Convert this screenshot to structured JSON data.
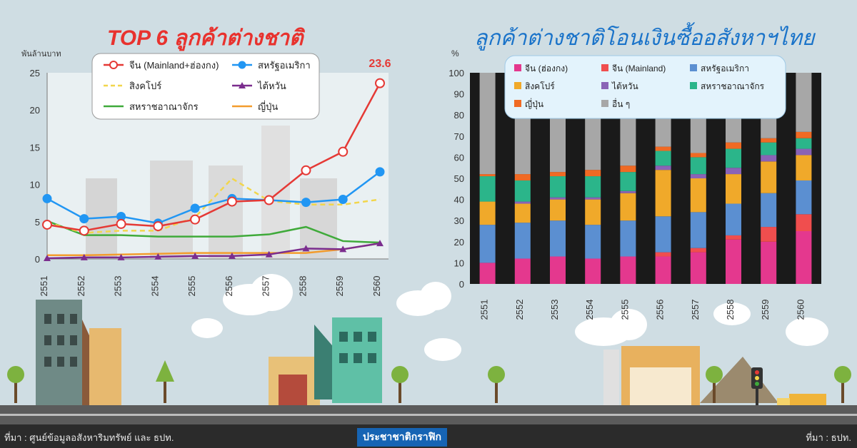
{
  "titles": {
    "left": "TOP 6 ลูกค้าต่างชาติ",
    "right": "ลูกค้าต่างชาติโอนเงินซื้ออสังหาฯไทย"
  },
  "footer": {
    "source_left": "ที่มา : ศูนย์ข้อมูลอสังหาริมทรัพย์ และ ธปท.",
    "brand": "ประชาชาติกราฟิก",
    "source_right": "ที่มา : ธปท."
  },
  "colors": {
    "china": "#e53935",
    "usa": "#2196f3",
    "singapore": "#f2d64b",
    "taiwan": "#7b2d8e",
    "uk": "#3faa3a",
    "japan": "#f39c2d",
    "s_hk": "#e4388e",
    "s_cn": "#f04e4e",
    "s_us": "#5b8fd1",
    "s_sg": "#f0a92a",
    "s_tw": "#8a63b6",
    "s_uk": "#2bb58a",
    "s_jp": "#f06a24",
    "s_other": "#a7a7a7"
  },
  "chart_data": [
    {
      "type": "line",
      "title": "TOP 6 ลูกค้าต่างชาติ",
      "ylabel": "พันล้านบาท",
      "ylim": [
        0,
        25
      ],
      "yticks": [
        "0",
        "5",
        "10",
        "15",
        "20",
        "25"
      ],
      "x": [
        "2551",
        "2552",
        "2553",
        "2554",
        "2555",
        "2556",
        "2557",
        "2558",
        "2559",
        "2560"
      ],
      "annotation": "23.6",
      "legend_position": "top",
      "series": [
        {
          "name": "จีน (Mainland+ฮ่องกง)",
          "key": "china",
          "marker": "circle-open",
          "values": [
            4.6,
            3.8,
            4.7,
            4.4,
            5.3,
            7.7,
            7.9,
            11.9,
            14.4,
            23.6
          ]
        },
        {
          "name": "สหรัฐอเมริกา",
          "key": "usa",
          "marker": "circle",
          "values": [
            8.1,
            5.4,
            5.7,
            4.8,
            6.8,
            8.1,
            7.9,
            7.6,
            8.0,
            11.7
          ]
        },
        {
          "name": "สิงคโปร์",
          "key": "singapore",
          "marker": "none",
          "dashed": true,
          "values": [
            4.9,
            3.5,
            3.8,
            3.8,
            5.6,
            10.8,
            7.8,
            7.3,
            7.3,
            8.0
          ]
        },
        {
          "name": "ไต้หวัน",
          "key": "taiwan",
          "marker": "triangle",
          "values": [
            0.1,
            0.2,
            0.2,
            0.3,
            0.4,
            0.4,
            0.6,
            1.4,
            1.3,
            2.1
          ]
        },
        {
          "name": "สหราชอาณาจักร",
          "key": "uk",
          "marker": "none",
          "values": [
            5.1,
            3.2,
            3.2,
            3.0,
            3.0,
            3.0,
            3.3,
            4.3,
            2.4,
            2.2
          ]
        },
        {
          "name": "ญี่ปุ่น",
          "key": "japan",
          "marker": "none",
          "values": [
            0.5,
            0.5,
            0.6,
            0.7,
            0.8,
            0.8,
            0.8,
            0.8,
            1.3,
            2.1
          ]
        }
      ]
    },
    {
      "type": "bar",
      "stacked": true,
      "title": "ลูกค้าต่างชาติโอนเงินซื้ออสังหาฯไทย",
      "ylabel": "%",
      "ylim": [
        0,
        100
      ],
      "yticks": [
        "0",
        "10",
        "20",
        "30",
        "40",
        "50",
        "60",
        "70",
        "80",
        "90",
        "100"
      ],
      "categories": [
        "2551",
        "2552",
        "2553",
        "2554",
        "2555",
        "2556",
        "2557",
        "2558",
        "2559",
        "2560"
      ],
      "legend_position": "top",
      "series": [
        {
          "name": "จีน (ฮ่องกง)",
          "key": "s_hk",
          "values": [
            10,
            12,
            13,
            12,
            13,
            13,
            15,
            21,
            20,
            25
          ]
        },
        {
          "name": "จีน (Mainland)",
          "key": "s_cn",
          "values": [
            0,
            0,
            0,
            0,
            0,
            2,
            2,
            2,
            7,
            8
          ]
        },
        {
          "name": "สหรัฐอเมริกา",
          "key": "s_us",
          "values": [
            18,
            17,
            17,
            16,
            17,
            17,
            17,
            15,
            16,
            16
          ]
        },
        {
          "name": "สิงคโปร์",
          "key": "s_sg",
          "values": [
            11,
            9,
            10,
            12,
            13,
            22,
            16,
            14,
            15,
            12
          ]
        },
        {
          "name": "ไต้หวัน",
          "key": "s_tw",
          "values": [
            0,
            1,
            1,
            1,
            1,
            2,
            2,
            3,
            3,
            3
          ]
        },
        {
          "name": "สหราชอาณาจักร",
          "key": "s_uk",
          "values": [
            12,
            10,
            10,
            10,
            9,
            7,
            8,
            9,
            6,
            5
          ]
        },
        {
          "name": "ญี่ปุ่น",
          "key": "s_jp",
          "values": [
            1,
            3,
            2,
            3,
            3,
            2,
            2,
            3,
            2,
            3
          ]
        },
        {
          "name": "อื่น ๆ",
          "key": "s_other",
          "values": [
            48,
            48,
            47,
            46,
            44,
            35,
            38,
            33,
            31,
            28
          ]
        }
      ]
    }
  ]
}
